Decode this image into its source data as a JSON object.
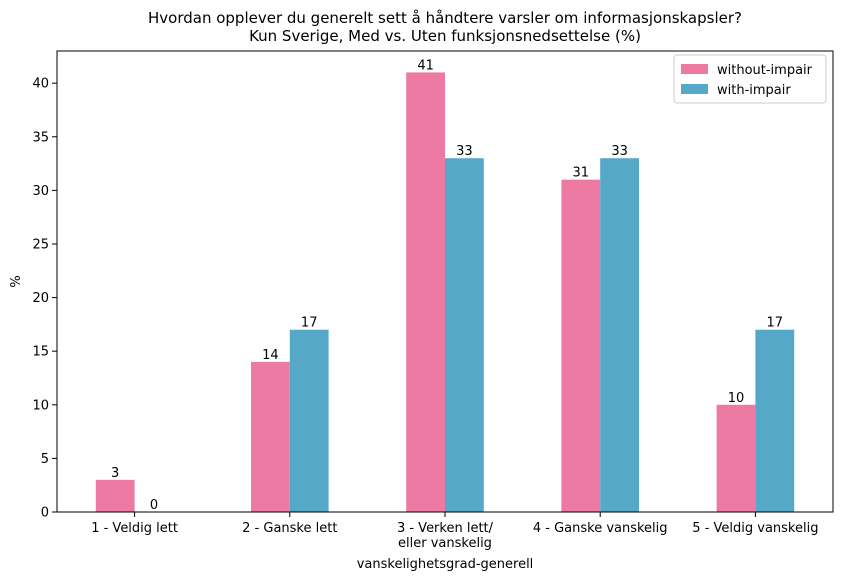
{
  "chart_data": {
    "type": "bar",
    "title_lines": [
      "Hvordan opplever du generelt sett å håndtere varsler om informasjonskapsler?",
      "Kun Sverige, Med vs. Uten funksjonsnedsettelse (%)"
    ],
    "xlabel": "vanskelighetsgrad-generell",
    "ylabel": "%",
    "ylim": [
      0,
      43
    ],
    "yticks": [
      0,
      5,
      10,
      15,
      20,
      25,
      30,
      35,
      40
    ],
    "grid": false,
    "legend_position": "top-right",
    "categories": [
      [
        "1 - Veldig lett"
      ],
      [
        "2 - Ganske lett"
      ],
      [
        "3 - Verken lett/",
        "eller vanskelig"
      ],
      [
        "4 - Ganske vanskelig"
      ],
      [
        "5 - Veldig vanskelig"
      ]
    ],
    "series": [
      {
        "name": "without-impair",
        "color": "#ec7aa3",
        "values": [
          3,
          14,
          41,
          31,
          10
        ]
      },
      {
        "name": "with-impair",
        "color": "#55a8c8",
        "values": [
          0,
          17,
          33,
          33,
          17
        ]
      }
    ]
  }
}
